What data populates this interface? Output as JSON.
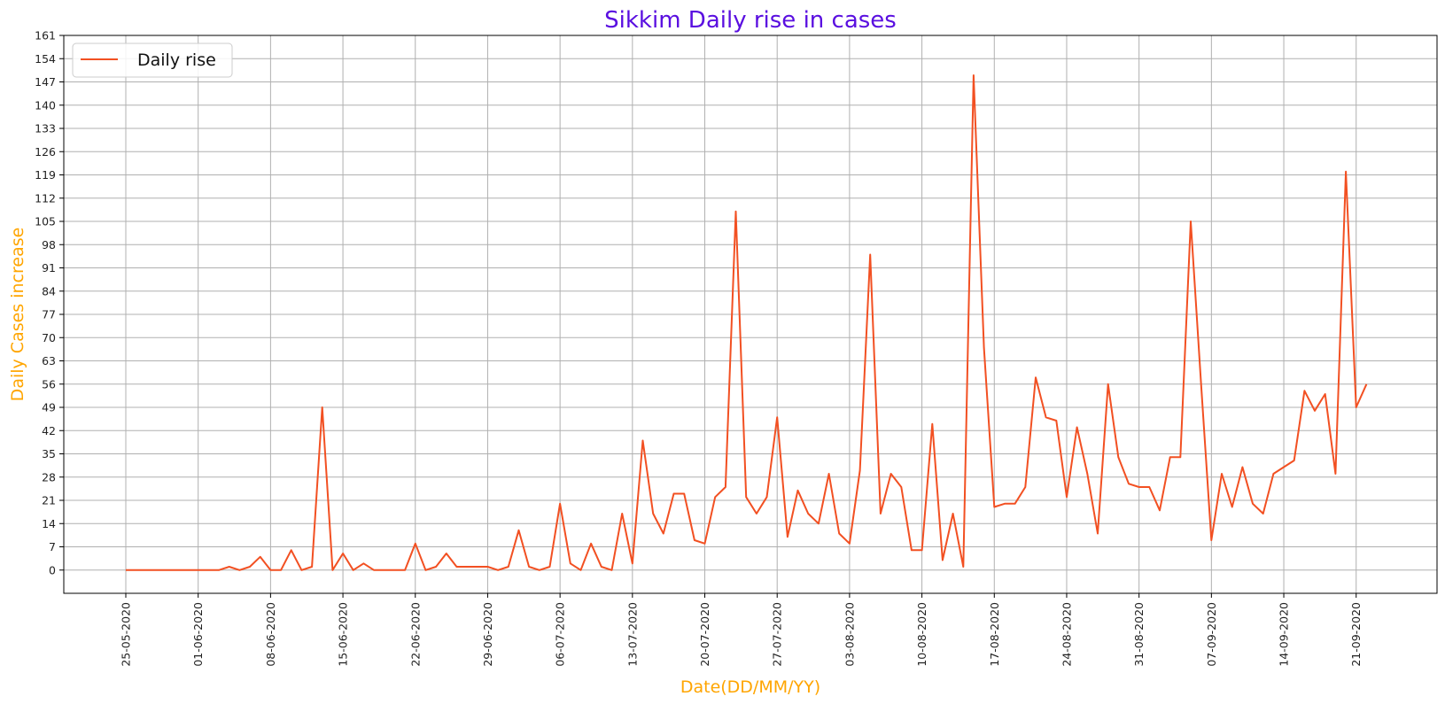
{
  "chart_data": {
    "type": "line",
    "title": "Sikkim Daily rise in cases",
    "xlabel": "Date(DD/MM/YY)",
    "ylabel": "Daily Cases increase",
    "ylim": [
      -7,
      161
    ],
    "grid": true,
    "legend_position": "top-left",
    "colors": {
      "title": "#5a0fe0",
      "axis_label": "#ffa500",
      "series": "#f25022",
      "grid": "#b0b0b0"
    },
    "y_ticks": [
      0,
      7,
      14,
      21,
      28,
      35,
      42,
      49,
      56,
      63,
      70,
      77,
      84,
      91,
      98,
      105,
      112,
      119,
      126,
      133,
      140,
      147,
      154,
      161
    ],
    "x_ticks": [
      "25-05-2020",
      "01-06-2020",
      "08-06-2020",
      "15-06-2020",
      "22-06-2020",
      "29-06-2020",
      "06-07-2020",
      "13-07-2020",
      "20-07-2020",
      "27-07-2020",
      "03-08-2020",
      "10-08-2020",
      "17-08-2020",
      "24-08-2020",
      "31-08-2020",
      "07-09-2020",
      "14-09-2020",
      "21-09-2020"
    ],
    "x_start": "25-05-2020",
    "series": [
      {
        "name": "Daily rise",
        "values": [
          0,
          0,
          0,
          0,
          0,
          0,
          0,
          0,
          0,
          0,
          1,
          0,
          1,
          4,
          0,
          0,
          6,
          0,
          1,
          49,
          0,
          5,
          0,
          2,
          0,
          0,
          0,
          0,
          8,
          0,
          1,
          5,
          1,
          1,
          1,
          1,
          0,
          1,
          12,
          1,
          0,
          1,
          20,
          2,
          0,
          8,
          1,
          0,
          17,
          2,
          39,
          17,
          11,
          23,
          23,
          9,
          8,
          22,
          25,
          108,
          22,
          17,
          22,
          46,
          10,
          24,
          17,
          14,
          29,
          11,
          8,
          30,
          95,
          17,
          29,
          25,
          6,
          6,
          44,
          3,
          17,
          1,
          149,
          67,
          19,
          20,
          20,
          25,
          58,
          46,
          45,
          22,
          43,
          29,
          11,
          56,
          34,
          26,
          25,
          25,
          18,
          34,
          34,
          105,
          56,
          9,
          29,
          19,
          31,
          20,
          17,
          29,
          31,
          33,
          54,
          48,
          53,
          29,
          120,
          49,
          56
        ]
      }
    ]
  }
}
